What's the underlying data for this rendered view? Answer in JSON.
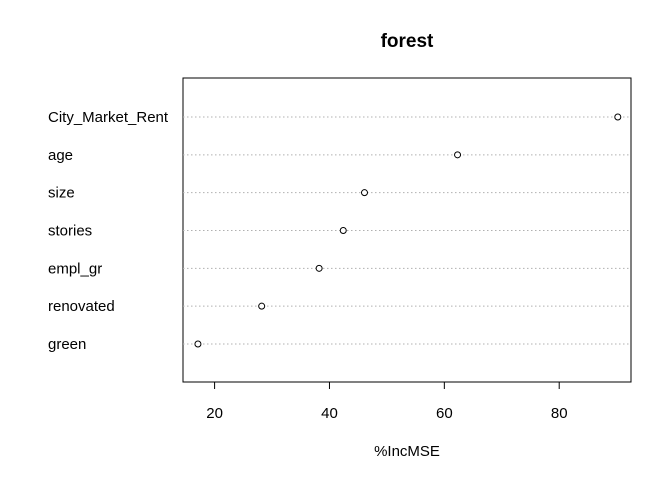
{
  "chart_data": {
    "type": "scatter",
    "title": "forest",
    "xlabel": "%IncMSE",
    "ylabel": "",
    "categories": [
      "City_Market_Rent",
      "age",
      "size",
      "stories",
      "empl_gr",
      "renovated",
      "green"
    ],
    "values": [
      90.2,
      62.3,
      46.1,
      42.4,
      38.2,
      28.2,
      17.1
    ],
    "xlim": [
      14.5,
      92.5
    ],
    "xticks": [
      20,
      40,
      60,
      80
    ],
    "grid": "horizontal-dotted",
    "legend": "none",
    "colors": {
      "point_fill": "#ffffff",
      "point_stroke": "#000000",
      "grid": "#b0b0b0",
      "frame": "#000000"
    }
  }
}
